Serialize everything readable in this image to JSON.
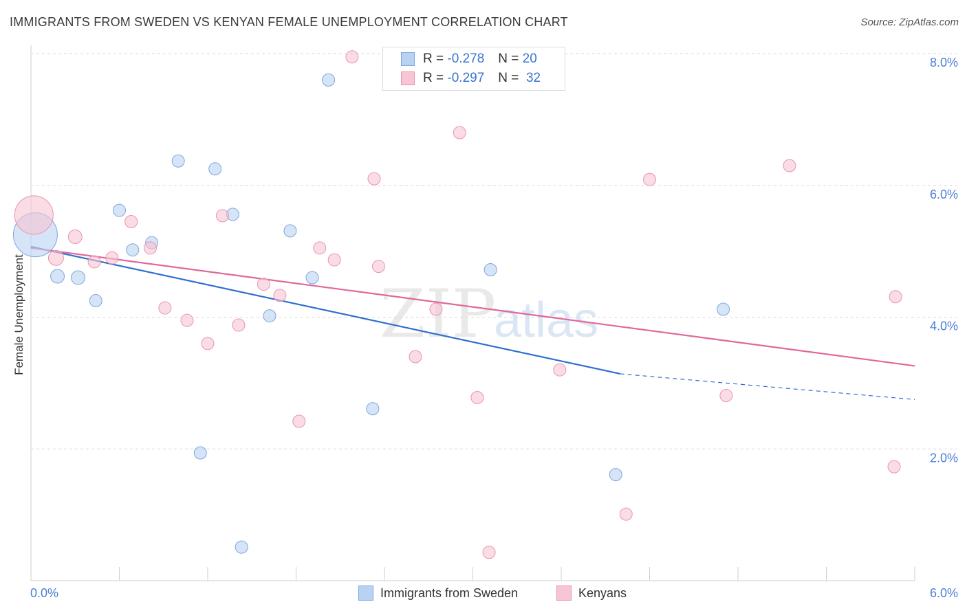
{
  "title": "IMMIGRANTS FROM SWEDEN VS KENYAN FEMALE UNEMPLOYMENT CORRELATION CHART",
  "source": "Source: ZipAtlas.com",
  "watermark": {
    "zip": "ZIP",
    "atlas": "atlas"
  },
  "colors": {
    "blue_fill": "#b9d2f2",
    "blue_stroke": "#7fa6dd",
    "blue_line": "#2f6fd1",
    "pink_fill": "#f7c5d4",
    "pink_stroke": "#eb93ad",
    "pink_line": "#e0679a",
    "tick_text": "#4a7fd4",
    "grid": "#d9d9d9"
  },
  "stats": [
    {
      "r_label": "R =",
      "r_value": "-0.278",
      "n_label": "N =",
      "n_value": "20"
    },
    {
      "r_label": "R =",
      "r_value": "-0.297",
      "n_label": "N =",
      "n_value": "32"
    }
  ],
  "legend": [
    {
      "label": "Immigrants from Sweden"
    },
    {
      "label": "Kenyans"
    }
  ],
  "chart_data": {
    "type": "scatter",
    "title": "IMMIGRANTS FROM SWEDEN VS KENYAN FEMALE UNEMPLOYMENT CORRELATION CHART",
    "xlabel": "",
    "ylabel": "Female Unemployment",
    "xlim": [
      0,
      6
    ],
    "ylim": [
      0,
      8
    ],
    "x_tick_labels": [
      "0.0%",
      "6.0%"
    ],
    "y_ticks": [
      2,
      4,
      6,
      8
    ],
    "y_tick_labels": [
      "2.0%",
      "4.0%",
      "6.0%",
      "8.0%"
    ],
    "grid": true,
    "legend_position": "bottom-center",
    "series": [
      {
        "name": "Immigrants from Sweden",
        "color": "#b9d2f2",
        "points": [
          {
            "x": 0.03,
            "y": 5.25,
            "size": 32
          },
          {
            "x": 0.18,
            "y": 4.62,
            "size": 10
          },
          {
            "x": 0.32,
            "y": 4.6,
            "size": 10
          },
          {
            "x": 0.44,
            "y": 4.25,
            "size": 9
          },
          {
            "x": 0.6,
            "y": 5.62,
            "size": 9
          },
          {
            "x": 0.69,
            "y": 5.02,
            "size": 9
          },
          {
            "x": 0.82,
            "y": 5.13,
            "size": 9
          },
          {
            "x": 1.0,
            "y": 6.37,
            "size": 9
          },
          {
            "x": 1.15,
            "y": 1.94,
            "size": 9
          },
          {
            "x": 1.25,
            "y": 6.25,
            "size": 9
          },
          {
            "x": 1.37,
            "y": 5.56,
            "size": 9
          },
          {
            "x": 1.43,
            "y": 0.51,
            "size": 9
          },
          {
            "x": 1.62,
            "y": 4.02,
            "size": 9
          },
          {
            "x": 1.76,
            "y": 5.31,
            "size": 9
          },
          {
            "x": 1.91,
            "y": 4.6,
            "size": 9
          },
          {
            "x": 2.02,
            "y": 7.6,
            "size": 9
          },
          {
            "x": 2.32,
            "y": 2.61,
            "size": 9
          },
          {
            "x": 3.12,
            "y": 4.72,
            "size": 9
          },
          {
            "x": 3.97,
            "y": 1.61,
            "size": 9
          },
          {
            "x": 4.7,
            "y": 4.12,
            "size": 9
          }
        ],
        "trend": {
          "x0": 0.0,
          "y0": 5.07,
          "x1": 4.0,
          "y1": 3.14,
          "dashed_to_x": 6.0,
          "dashed_to_y": 2.75
        }
      },
      {
        "name": "Kenyans",
        "color": "#f7c5d4",
        "points": [
          {
            "x": 0.02,
            "y": 5.55,
            "size": 28
          },
          {
            "x": 0.17,
            "y": 4.9,
            "size": 11
          },
          {
            "x": 0.3,
            "y": 5.22,
            "size": 10
          },
          {
            "x": 0.43,
            "y": 4.84,
            "size": 9
          },
          {
            "x": 0.55,
            "y": 4.9,
            "size": 9
          },
          {
            "x": 0.68,
            "y": 5.45,
            "size": 9
          },
          {
            "x": 0.81,
            "y": 5.05,
            "size": 9
          },
          {
            "x": 0.91,
            "y": 4.14,
            "size": 9
          },
          {
            "x": 1.06,
            "y": 3.95,
            "size": 9
          },
          {
            "x": 1.2,
            "y": 3.6,
            "size": 9
          },
          {
            "x": 1.3,
            "y": 5.54,
            "size": 9
          },
          {
            "x": 1.41,
            "y": 3.88,
            "size": 9
          },
          {
            "x": 1.58,
            "y": 4.5,
            "size": 9
          },
          {
            "x": 1.69,
            "y": 4.33,
            "size": 9
          },
          {
            "x": 1.82,
            "y": 2.42,
            "size": 9
          },
          {
            "x": 1.96,
            "y": 5.05,
            "size": 9
          },
          {
            "x": 2.06,
            "y": 4.87,
            "size": 9
          },
          {
            "x": 2.18,
            "y": 7.95,
            "size": 9
          },
          {
            "x": 2.36,
            "y": 4.77,
            "size": 9
          },
          {
            "x": 2.33,
            "y": 6.1,
            "size": 9
          },
          {
            "x": 2.61,
            "y": 3.4,
            "size": 9
          },
          {
            "x": 2.75,
            "y": 4.12,
            "size": 9
          },
          {
            "x": 2.91,
            "y": 6.8,
            "size": 9
          },
          {
            "x": 3.03,
            "y": 2.78,
            "size": 9
          },
          {
            "x": 3.11,
            "y": 0.43,
            "size": 9
          },
          {
            "x": 3.59,
            "y": 3.2,
            "size": 9
          },
          {
            "x": 4.04,
            "y": 1.01,
            "size": 9
          },
          {
            "x": 4.2,
            "y": 6.09,
            "size": 9
          },
          {
            "x": 4.72,
            "y": 2.81,
            "size": 9
          },
          {
            "x": 5.15,
            "y": 6.3,
            "size": 9
          },
          {
            "x": 5.86,
            "y": 1.73,
            "size": 9
          },
          {
            "x": 5.87,
            "y": 4.31,
            "size": 9
          }
        ],
        "trend": {
          "x0": 0.0,
          "y0": 5.05,
          "x1": 6.0,
          "y1": 3.26
        }
      }
    ]
  }
}
